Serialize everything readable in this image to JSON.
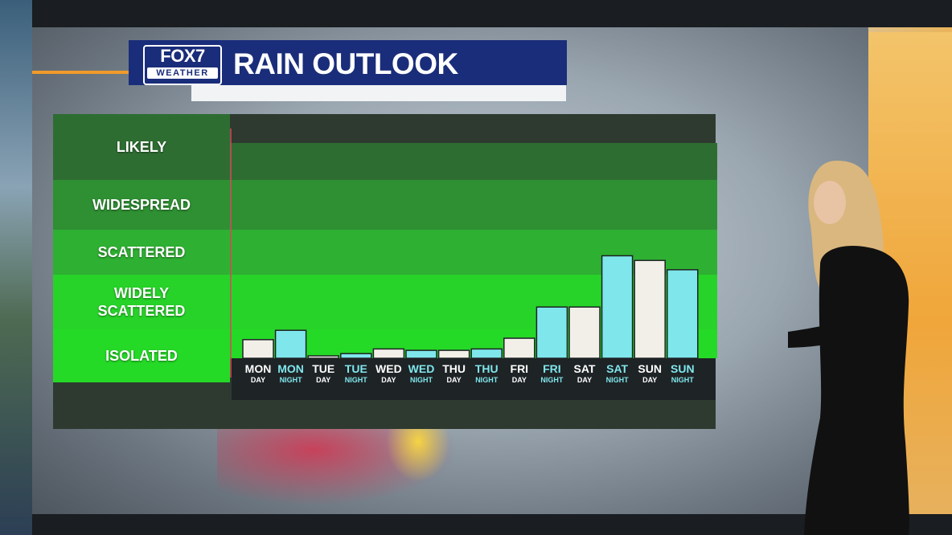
{
  "station": {
    "logo_top": "FOX7",
    "logo_bottom": "WEATHER"
  },
  "header": {
    "title": "RAIN OUTLOOK"
  },
  "colors": {
    "day_bar": "#f2efe8",
    "night_bar": "#7fe7ec",
    "title_bg": "#1a2d7a",
    "accent": "#f19a2a"
  },
  "chart_data": {
    "type": "bar",
    "title": "RAIN OUTLOOK",
    "y_categories": [
      "LIKELY",
      "WIDESPREAD",
      "SCATTERED",
      "WIDELY SCATTERED",
      "ISOLATED"
    ],
    "ylim": [
      0,
      5
    ],
    "grid": false,
    "categories": [
      {
        "day": "MON",
        "period": "DAY"
      },
      {
        "day": "MON",
        "period": "NIGHT"
      },
      {
        "day": "TUE",
        "period": "DAY"
      },
      {
        "day": "TUE",
        "period": "NIGHT"
      },
      {
        "day": "WED",
        "period": "DAY"
      },
      {
        "day": "WED",
        "period": "NIGHT"
      },
      {
        "day": "THU",
        "period": "DAY"
      },
      {
        "day": "THU",
        "period": "NIGHT"
      },
      {
        "day": "FRI",
        "period": "DAY"
      },
      {
        "day": "FRI",
        "period": "NIGHT"
      },
      {
        "day": "SAT",
        "period": "DAY"
      },
      {
        "day": "SAT",
        "period": "NIGHT"
      },
      {
        "day": "SUN",
        "period": "DAY"
      },
      {
        "day": "SUN",
        "period": "NIGHT"
      }
    ],
    "values": [
      0.4,
      0.6,
      0.05,
      0.1,
      0.2,
      0.17,
      0.17,
      0.2,
      0.43,
      1.1,
      1.1,
      2.2,
      2.1,
      1.9
    ]
  }
}
